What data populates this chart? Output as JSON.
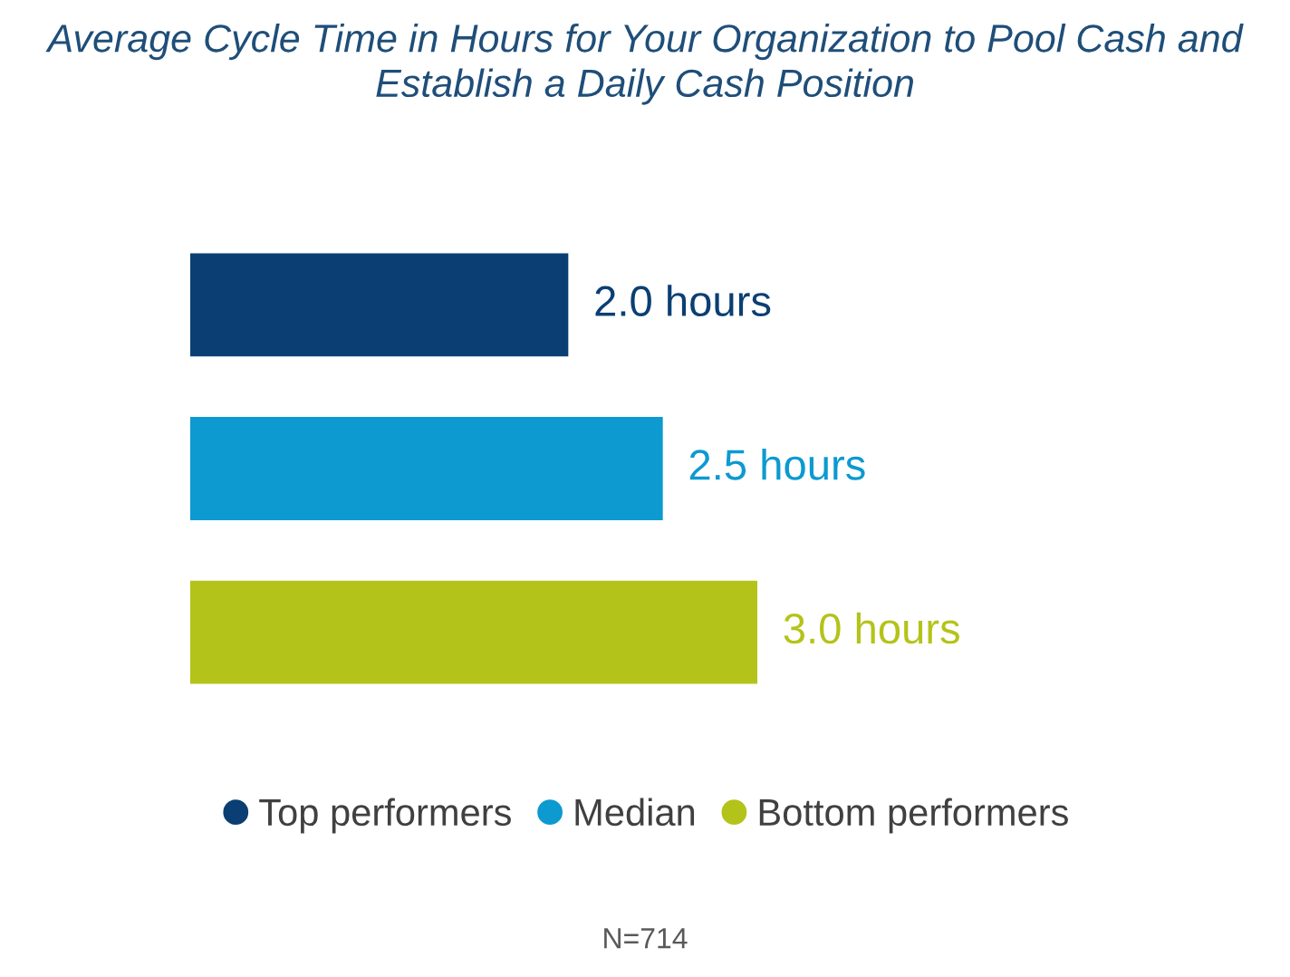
{
  "chart_data": {
    "type": "bar",
    "orientation": "horizontal",
    "stacked": true,
    "title": "Average Cycle Time in Hours for Your Organization to Pool Cash and Establish a Daily Cash Position",
    "categories": [
      null,
      null,
      null
    ],
    "series": [
      {
        "name": "Top performers",
        "color": "#0b3f73",
        "values": [
          2.0,
          null,
          null
        ],
        "value_labels": [
          "2.0 hours",
          null,
          null
        ]
      },
      {
        "name": "Median",
        "color": "#0c9ad0",
        "values": [
          null,
          2.5,
          null
        ],
        "value_labels": [
          null,
          "2.5 hours",
          null
        ]
      },
      {
        "name": "Bottom performers",
        "color": "#b4c31a",
        "values": [
          null,
          null,
          3.0
        ],
        "value_labels": [
          null,
          null,
          "3.0 hours"
        ]
      }
    ],
    "legend": "bottom",
    "annotations": [
      "N=714"
    ]
  }
}
